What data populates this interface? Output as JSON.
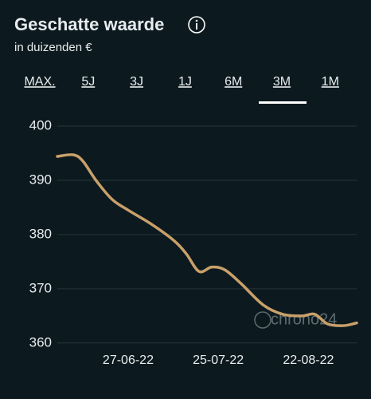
{
  "header": {
    "title": "Geschatte waarde",
    "subtitle": "in duizenden €"
  },
  "tabs": [
    "MAX.",
    "5J",
    "3J",
    "1J",
    "6M",
    "3M",
    "1M"
  ],
  "chart_data": {
    "type": "line",
    "x": [
      "2022-06-05",
      "2022-06-10",
      "2022-06-13",
      "2022-06-17",
      "2022-06-22",
      "2022-06-27",
      "2022-07-04",
      "2022-07-11",
      "2022-07-15",
      "2022-07-19",
      "2022-07-23",
      "2022-07-27",
      "2022-08-01",
      "2022-08-08",
      "2022-08-14",
      "2022-08-20",
      "2022-08-24",
      "2022-08-28",
      "2022-09-02",
      "2022-09-06"
    ],
    "values": [
      394.4,
      394.7,
      393.5,
      390,
      386.5,
      384.5,
      382,
      379,
      376.5,
      373.2,
      374,
      373.5,
      371,
      367,
      365.3,
      365,
      365.3,
      363.5,
      363.2,
      363.7
    ],
    "color": "#c9a06a",
    "xlim": [
      "2022-06-05",
      "2022-09-06"
    ],
    "xticks": [
      {
        "value": "2022-06-27",
        "label": "27-06-22"
      },
      {
        "value": "2022-07-25",
        "label": "25-07-22"
      },
      {
        "value": "2022-08-22",
        "label": "22-08-22"
      }
    ],
    "ylim": [
      358.5,
      400
    ],
    "yticks": [
      360,
      370,
      380,
      390,
      400
    ],
    "grid": true,
    "watermark": "chrono24"
  }
}
